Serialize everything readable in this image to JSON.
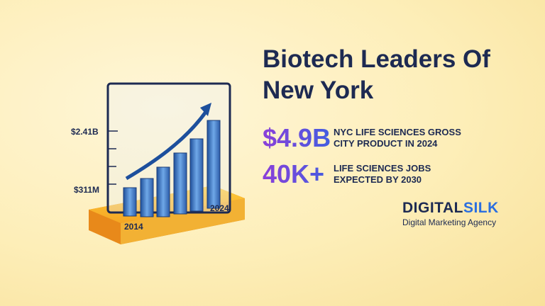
{
  "header": {
    "title": "Biotech Leaders Of New York"
  },
  "stats": [
    {
      "value": "$4.9B",
      "label": "NYC LIFE SCIENCES GROSS CITY PRODUCT IN 2024"
    },
    {
      "value": "40K+",
      "label": "LIFE SCIENCES JOBS EXPECTED BY 2030"
    }
  ],
  "illustration": {
    "axis_labels": [
      "$2.41B",
      "$311M"
    ],
    "years": [
      "2014",
      "2024"
    ]
  },
  "logo": {
    "brand": [
      "DIGITAL",
      "SILK"
    ],
    "tagline": "Digital Marketing Agency"
  }
}
